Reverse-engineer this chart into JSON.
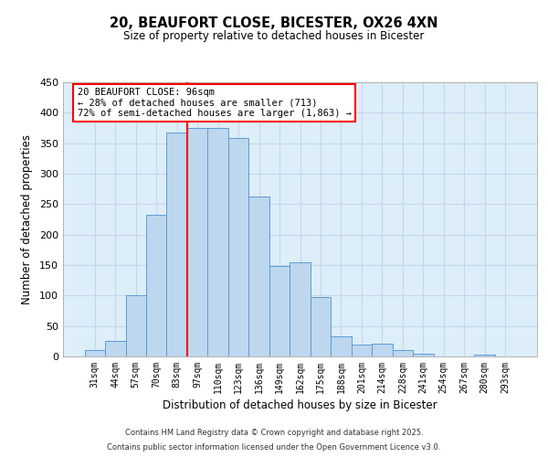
{
  "title": "20, BEAUFORT CLOSE, BICESTER, OX26 4XN",
  "subtitle": "Size of property relative to detached houses in Bicester",
  "xlabel": "Distribution of detached houses by size in Bicester",
  "ylabel": "Number of detached properties",
  "bar_labels": [
    "31sqm",
    "44sqm",
    "57sqm",
    "70sqm",
    "83sqm",
    "97sqm",
    "110sqm",
    "123sqm",
    "136sqm",
    "149sqm",
    "162sqm",
    "175sqm",
    "188sqm",
    "201sqm",
    "214sqm",
    "228sqm",
    "241sqm",
    "254sqm",
    "267sqm",
    "280sqm",
    "293sqm"
  ],
  "bar_values": [
    10,
    25,
    100,
    232,
    368,
    375,
    375,
    358,
    262,
    148,
    155,
    97,
    33,
    20,
    21,
    10,
    5,
    0,
    0,
    3,
    0
  ],
  "bar_color": "#bdd7ee",
  "bar_edge_color": "#5b9bd5",
  "bg_color": "#ddeef9",
  "grid_color": "#c0d8ee",
  "vline_x_index": 5,
  "vline_color": "red",
  "annotation_title": "20 BEAUFORT CLOSE: 96sqm",
  "annotation_line1": "← 28% of detached houses are smaller (713)",
  "annotation_line2": "72% of semi-detached houses are larger (1,863) →",
  "annotation_box_color": "#ffffff",
  "annotation_box_edge": "red",
  "ylim": [
    0,
    450
  ],
  "yticks": [
    0,
    50,
    100,
    150,
    200,
    250,
    300,
    350,
    400,
    450
  ],
  "footer1": "Contains HM Land Registry data © Crown copyright and database right 2025.",
  "footer2": "Contains public sector information licensed under the Open Government Licence v3.0."
}
